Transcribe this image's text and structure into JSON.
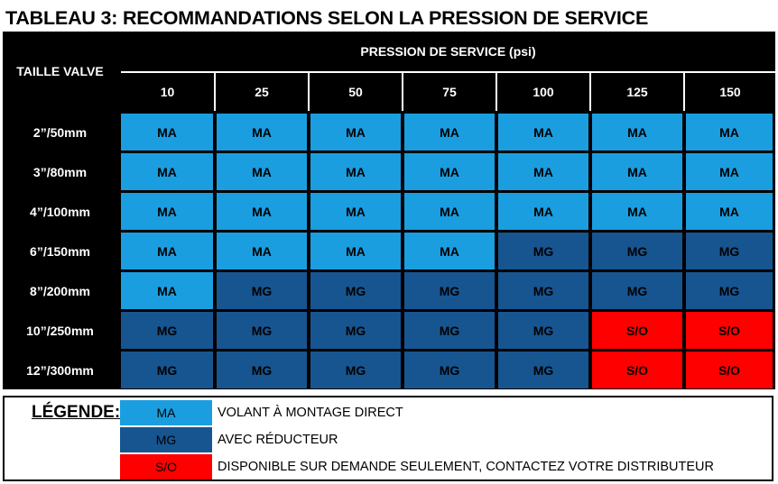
{
  "title": "TABLEAU 3: RECOMMANDATIONS SELON LA PRESSION DE SERVICE",
  "table": {
    "row_header_label": "TAILLE VALVE",
    "group_header": "PRESSION DE SERVICE (psi)",
    "pressures": [
      "10",
      "25",
      "50",
      "75",
      "100",
      "125",
      "150"
    ],
    "rows": [
      {
        "size": "2”/50mm",
        "values": [
          "MA",
          "MA",
          "MA",
          "MA",
          "MA",
          "MA",
          "MA"
        ]
      },
      {
        "size": "3”/80mm",
        "values": [
          "MA",
          "MA",
          "MA",
          "MA",
          "MA",
          "MA",
          "MA"
        ]
      },
      {
        "size": "4”/100mm",
        "values": [
          "MA",
          "MA",
          "MA",
          "MA",
          "MA",
          "MA",
          "MA"
        ]
      },
      {
        "size": "6”/150mm",
        "values": [
          "MA",
          "MA",
          "MA",
          "MA",
          "MG",
          "MG",
          "MG"
        ]
      },
      {
        "size": "8”/200mm",
        "values": [
          "MA",
          "MG",
          "MG",
          "MG",
          "MG",
          "MG",
          "MG"
        ]
      },
      {
        "size": "10”/250mm",
        "values": [
          "MG",
          "MG",
          "MG",
          "MG",
          "MG",
          "S/O",
          "S/O"
        ]
      },
      {
        "size": "12”/300mm",
        "values": [
          "MG",
          "MG",
          "MG",
          "MG",
          "MG",
          "S/O",
          "S/O"
        ]
      }
    ]
  },
  "legend": {
    "title": "LÉGENDE:",
    "items": [
      {
        "code": "MA",
        "description": "VOLANT À MONTAGE DIRECT"
      },
      {
        "code": "MG",
        "description": "AVEC RÉDUCTEUR"
      },
      {
        "code": "S/O",
        "description": "DISPONIBLE SUR DEMANDE SEULEMENT, CONTACTEZ VOTRE DISTRIBUTEUR"
      }
    ]
  },
  "colors": {
    "MA": "#1a9ee0",
    "MG": "#175591",
    "S/O": "#ff0000",
    "header": "#000000"
  }
}
